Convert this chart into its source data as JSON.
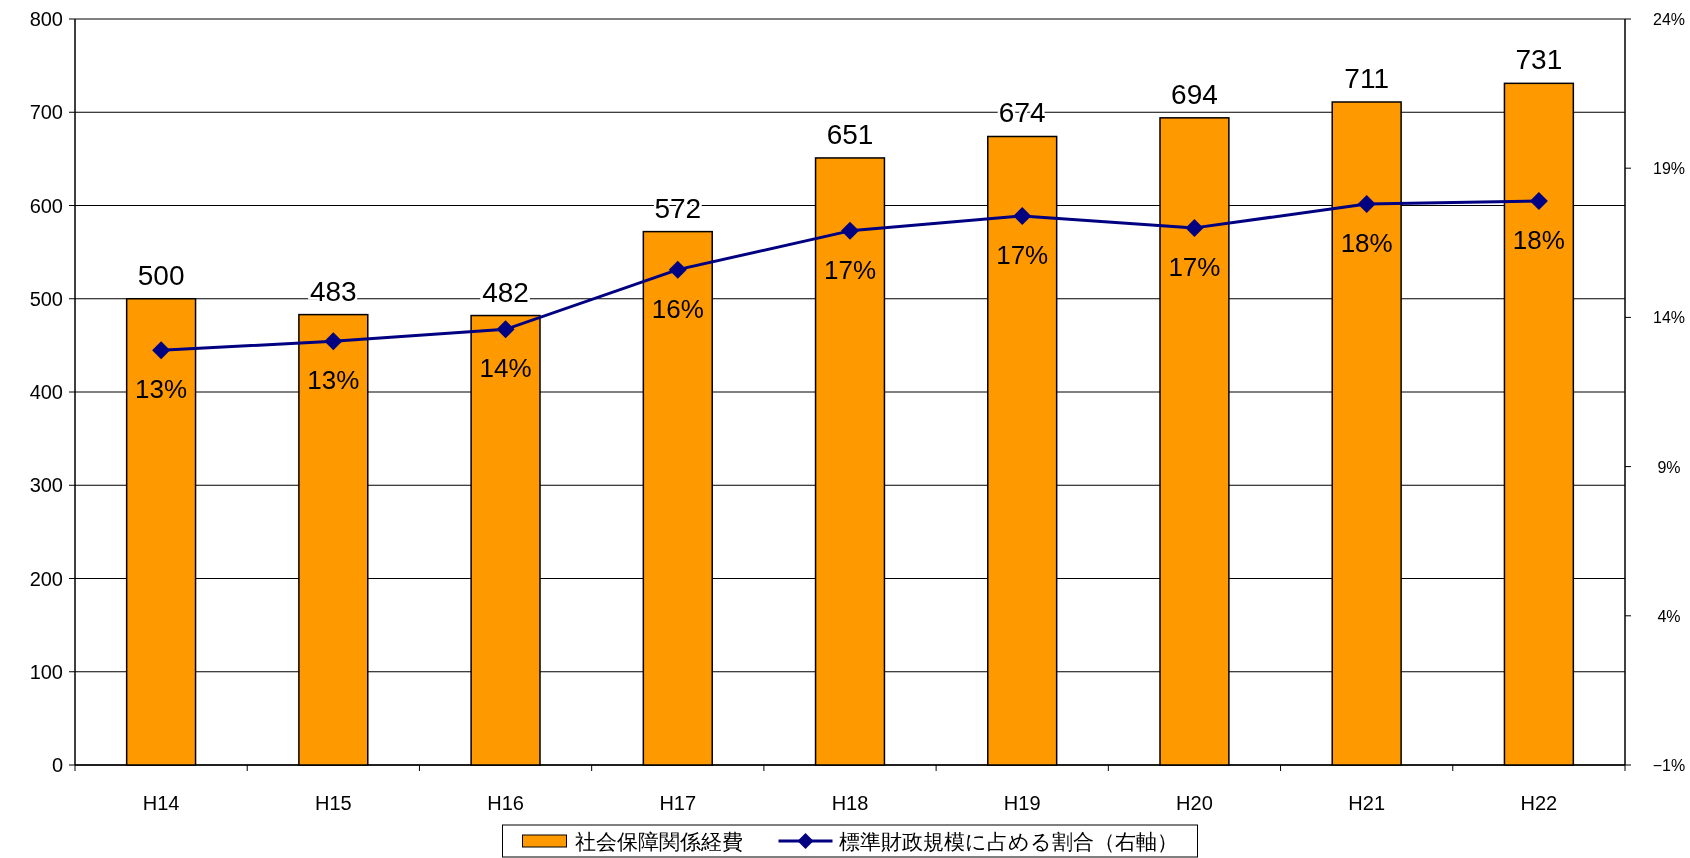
{
  "chart_data": {
    "type": "bar",
    "categories": [
      "H14",
      "H15",
      "H16",
      "H17",
      "H18",
      "H19",
      "H20",
      "H21",
      "H22"
    ],
    "series": [
      {
        "name": "社会保障関係経費",
        "color": "#ff9900",
        "values": [
          500,
          483,
          482,
          572,
          651,
          674,
          694,
          711,
          731
        ]
      },
      {
        "name": "標準財政規模に占める割合（右軸）",
        "type": "line",
        "axis": "y2",
        "color": "#000080",
        "marker": "diamond",
        "values": [
          12.9,
          13.2,
          13.6,
          15.6,
          16.9,
          17.4,
          17.0,
          17.8,
          17.9
        ],
        "value_labels": [
          "13%",
          "13%",
          "14%",
          "16%",
          "17%",
          "17%",
          "17%",
          "18%",
          "18%"
        ]
      }
    ],
    "data_labels": true,
    "ylim": [
      0,
      800
    ],
    "yticks": [
      0,
      100,
      200,
      300,
      400,
      500,
      600,
      700,
      800
    ],
    "y2lim": [
      -1,
      24
    ],
    "y2ticks": [
      {
        "value": -1,
        "label": "−1%"
      },
      {
        "value": 4,
        "label": "4%"
      },
      {
        "value": 9,
        "label": "9%"
      },
      {
        "value": 14,
        "label": "14%"
      },
      {
        "value": 19,
        "label": "19%"
      },
      {
        "value": 24,
        "label": "24%"
      }
    ],
    "grid": "y",
    "legend": "bottom"
  }
}
